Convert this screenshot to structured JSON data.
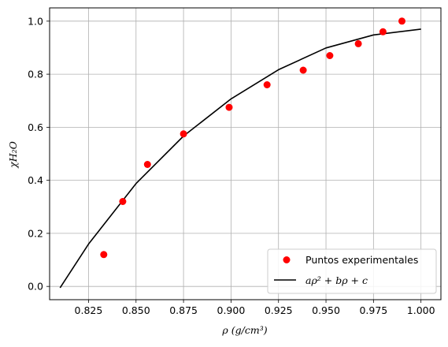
{
  "chart_data": {
    "type": "scatter",
    "title": "",
    "xlabel": "ρ (g/cm³)",
    "ylabel": "χH₂O",
    "xlim": [
      0.8045,
      1.0105
    ],
    "ylim": [
      -0.05,
      1.05
    ],
    "xticks": [
      0.825,
      0.85,
      0.875,
      0.9,
      0.925,
      0.95,
      0.975,
      1.0
    ],
    "xtick_labels": [
      "0.825",
      "0.850",
      "0.875",
      "0.900",
      "0.925",
      "0.950",
      "0.975",
      "1.000"
    ],
    "yticks": [
      0.0,
      0.2,
      0.4,
      0.6,
      0.8,
      1.0
    ],
    "ytick_labels": [
      "0.0",
      "0.2",
      "0.4",
      "0.6",
      "0.8",
      "1.0"
    ],
    "grid": true,
    "legend_position": "bottom-right",
    "series": [
      {
        "name": "Puntos experimentales",
        "kind": "points",
        "color": "#ff0000",
        "x": [
          0.833,
          0.843,
          0.856,
          0.875,
          0.899,
          0.919,
          0.938,
          0.952,
          0.967,
          0.98,
          0.99
        ],
        "y": [
          0.12,
          0.32,
          0.46,
          0.575,
          0.675,
          0.76,
          0.815,
          0.87,
          0.915,
          0.96,
          1.0
        ]
      },
      {
        "name": "aρ² + bρ + c",
        "kind": "line",
        "color": "#000000",
        "x": [
          0.81,
          0.825,
          0.85,
          0.875,
          0.9,
          0.925,
          0.95,
          0.975,
          1.0
        ],
        "y": [
          -0.005,
          0.16,
          0.388,
          0.567,
          0.707,
          0.817,
          0.899,
          0.948,
          0.97
        ]
      }
    ]
  }
}
